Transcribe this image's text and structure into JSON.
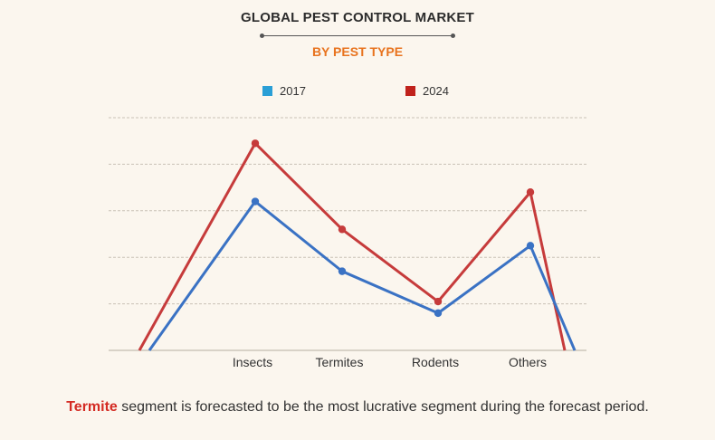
{
  "header": {
    "title": "GLOBAL PEST CONTROL MARKET",
    "subtitle": "BY PEST TYPE"
  },
  "colors": {
    "accent": "#e8731e",
    "highlight": "#d42b23",
    "grid": "#c9c2b6"
  },
  "chart_data": {
    "type": "line",
    "categories": [
      "",
      "Insects",
      "Termites",
      "Rodents",
      "Others",
      ""
    ],
    "series": [
      {
        "name": "2017",
        "color": "#3a72c4",
        "legend_color": "#2a9fd6",
        "values": [
          0,
          3.2,
          1.7,
          0.8,
          2.25,
          0
        ]
      },
      {
        "name": "2024",
        "color": "#c63b3b",
        "legend_color": "#c0221c",
        "values": [
          0,
          4.45,
          2.6,
          1.05,
          3.4,
          0
        ]
      }
    ],
    "ylim": [
      0,
      5
    ],
    "grid": true,
    "legend": "top-center",
    "xlabel": "",
    "ylabel": ""
  },
  "footer": {
    "highlight": "Termite",
    "text": " segment is forecasted to be the most lucrative segment during the forecast period."
  }
}
